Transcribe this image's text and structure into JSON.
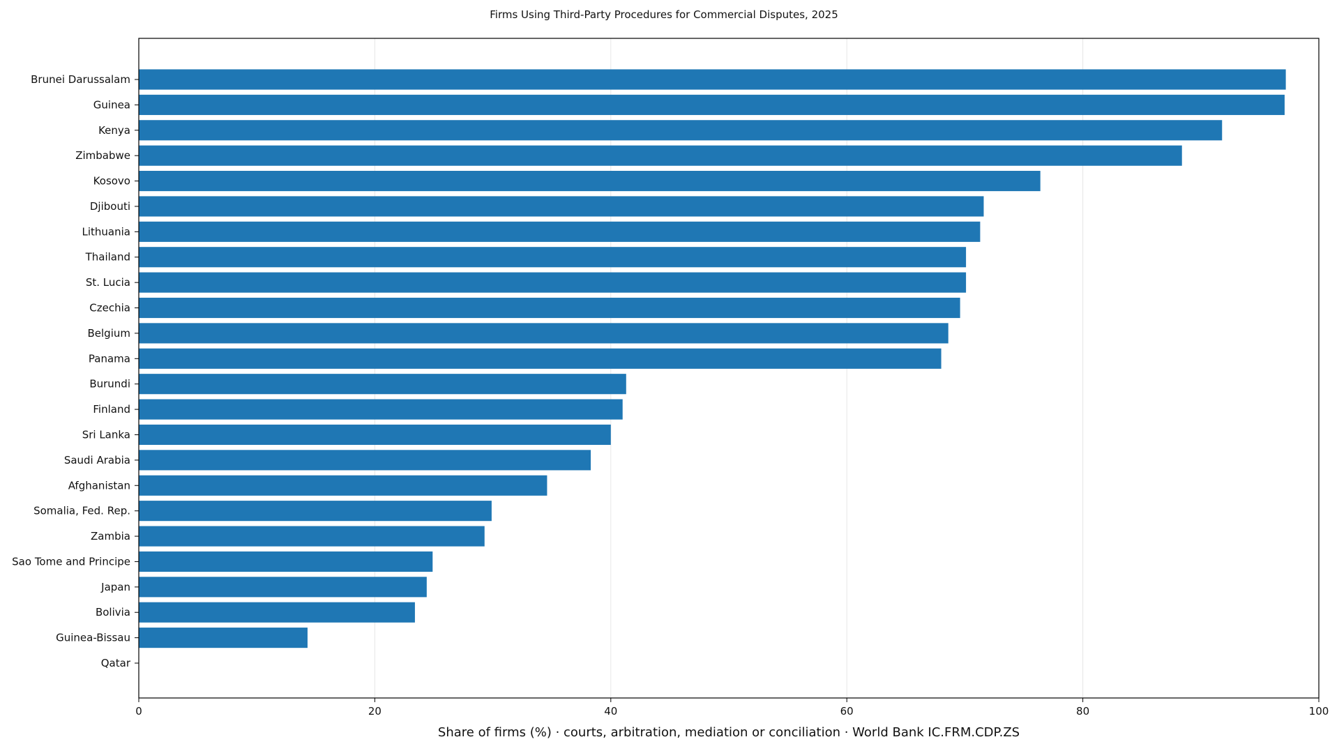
{
  "colors": {
    "bar": "#1f77b4",
    "grid": "#e6e6e6",
    "axis": "#000000"
  },
  "chart_data": {
    "type": "bar",
    "orientation": "horizontal",
    "title": "Firms Using Third-Party Procedures for Commercial Disputes, 2025",
    "xlabel": "Share of firms (%) · courts, arbitration, mediation or conciliation · World Bank IC.FRM.CDP.ZS",
    "ylabel": "",
    "xlim": [
      0,
      100
    ],
    "xticks": [
      0,
      20,
      40,
      60,
      80,
      100
    ],
    "grid": "vertical",
    "categories": [
      "Brunei Darussalam",
      "Guinea",
      "Kenya",
      "Zimbabwe",
      "Kosovo",
      "Djibouti",
      "Lithuania",
      "Thailand",
      "St. Lucia",
      "Czechia",
      "Belgium",
      "Panama",
      "Burundi",
      "Finland",
      "Sri Lanka",
      "Saudi Arabia",
      "Afghanistan",
      "Somalia, Fed. Rep.",
      "Zambia",
      "Sao Tome and Principe",
      "Japan",
      "Bolivia",
      "Guinea-Bissau",
      "Qatar"
    ],
    "values": [
      97.2,
      97.1,
      91.8,
      88.4,
      76.4,
      71.6,
      71.3,
      70.1,
      70.1,
      69.6,
      68.6,
      68.0,
      41.3,
      41.0,
      40.0,
      38.3,
      34.6,
      29.9,
      29.3,
      24.9,
      24.4,
      23.4,
      14.3,
      0
    ]
  }
}
